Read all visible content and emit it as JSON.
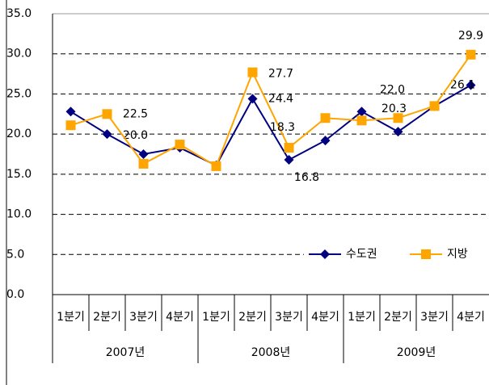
{
  "chart_data": {
    "type": "line",
    "categories": [
      "1분기",
      "2분기",
      "3분기",
      "4분기",
      "1분기",
      "2분기",
      "3분기",
      "4분기",
      "1분기",
      "2분기",
      "3분기",
      "4분기"
    ],
    "groups": [
      "2007년",
      "2008년",
      "2009년"
    ],
    "series": [
      {
        "name": "수도권",
        "color": "#000080",
        "marker": "diamond",
        "values": [
          22.8,
          20.0,
          17.5,
          18.3,
          16.1,
          24.4,
          16.8,
          19.2,
          22.8,
          20.3,
          23.5,
          26.1
        ],
        "value_labels": [
          null,
          "20.0",
          null,
          null,
          null,
          "24.4",
          "16.8",
          null,
          null,
          "20.3",
          null,
          "26.1"
        ]
      },
      {
        "name": "지방",
        "color": "#ffa500",
        "marker": "square",
        "values": [
          21.1,
          22.5,
          16.3,
          18.7,
          16.0,
          27.7,
          18.3,
          22.0,
          21.7,
          22.0,
          23.5,
          29.9
        ],
        "value_labels": [
          null,
          "22.5",
          null,
          null,
          null,
          "27.7",
          "18.3",
          null,
          null,
          "22.0",
          null,
          "29.9"
        ]
      }
    ],
    "ylim": [
      0,
      35
    ],
    "yticks": [
      {
        "value": 0,
        "label": "0.0"
      },
      {
        "value": 5,
        "label": "5.0"
      },
      {
        "value": 10,
        "label": "10.0"
      },
      {
        "value": 15,
        "label": "15.0"
      },
      {
        "value": 20,
        "label": "20.0"
      },
      {
        "value": 25,
        "label": "25.0"
      },
      {
        "value": 30,
        "label": "30.0"
      },
      {
        "value": 35,
        "label": "35.0"
      }
    ],
    "grid": true,
    "legend": "lower right"
  }
}
